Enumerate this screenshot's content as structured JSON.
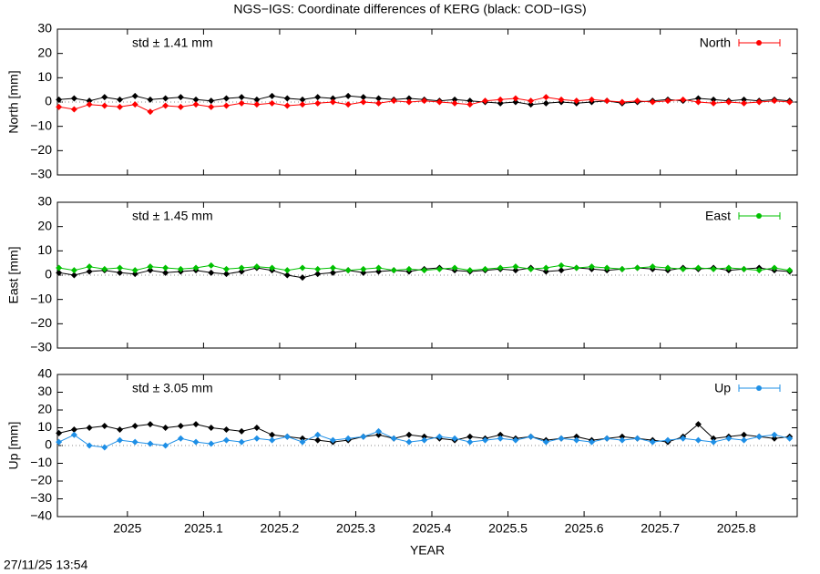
{
  "title": "NGS−IGS: Coordinate differences of KERG (black: COD−IGS)",
  "timestamp": "27/11/25 13:54",
  "chart_data": [
    {
      "type": "line",
      "ylabel": "North [mm]",
      "annotation": "std ± 1.41 mm",
      "xlim": [
        2024.908,
        2025.88
      ],
      "ylim": [
        -30,
        30
      ],
      "yticks": [
        {
          "value": -30,
          "label": "−30"
        },
        {
          "value": -20,
          "label": "−20"
        },
        {
          "value": -10,
          "label": "−10"
        },
        0,
        10,
        20,
        30
      ],
      "x": [
        2024.91,
        2024.93,
        2024.95,
        2024.97,
        2024.99,
        2025.01,
        2025.03,
        2025.05,
        2025.07,
        2025.09,
        2025.11,
        2025.13,
        2025.15,
        2025.17,
        2025.19,
        2025.21,
        2025.23,
        2025.25,
        2025.27,
        2025.29,
        2025.31,
        2025.33,
        2025.35,
        2025.37,
        2025.39,
        2025.41,
        2025.43,
        2025.45,
        2025.47,
        2025.49,
        2025.51,
        2025.53,
        2025.55,
        2025.57,
        2025.59,
        2025.61,
        2025.63,
        2025.65,
        2025.67,
        2025.69,
        2025.71,
        2025.73,
        2025.75,
        2025.77,
        2025.79,
        2025.81,
        2025.83,
        2025.85,
        2025.87
      ],
      "series": [
        {
          "color": "#000000",
          "values": [
            1,
            1.5,
            0.5,
            2,
            1,
            2.5,
            1,
            1.5,
            2,
            1,
            0.5,
            1.5,
            2,
            1,
            2.5,
            1.5,
            1,
            2,
            1.5,
            2.5,
            2,
            1.5,
            1,
            1.5,
            1,
            0.5,
            1,
            0.5,
            0,
            -0.5,
            0,
            -1,
            -0.5,
            0,
            -0.5,
            0,
            0.5,
            -0.5,
            0,
            0.5,
            1,
            0.5,
            1.5,
            1,
            0.5,
            1,
            0.5,
            1,
            0.5
          ]
        },
        {
          "name": "North",
          "color": "#ff0000",
          "values": [
            -2,
            -3,
            -1,
            -1.5,
            -2,
            -1,
            -4,
            -1.5,
            -2,
            -1,
            -2,
            -1.5,
            -0.5,
            -1,
            -0.5,
            -1.5,
            -1,
            -0.5,
            0,
            -1,
            0,
            -0.5,
            0.5,
            0,
            0.5,
            0,
            -0.5,
            -1,
            0.5,
            1,
            1.5,
            0.5,
            2,
            1,
            0.5,
            1,
            0.5,
            0,
            0.5,
            0,
            0.5,
            1,
            0,
            -0.5,
            0,
            -0.5,
            0,
            0.5,
            0
          ]
        }
      ]
    },
    {
      "type": "line",
      "ylabel": "East [mm]",
      "annotation": "std ± 1.45 mm",
      "xlim": [
        2024.908,
        2025.88
      ],
      "ylim": [
        -30,
        30
      ],
      "yticks": [
        {
          "value": -30,
          "label": "−30"
        },
        {
          "value": -20,
          "label": "−20"
        },
        {
          "value": -10,
          "label": "−10"
        },
        0,
        10,
        20,
        30
      ],
      "x": [
        2024.91,
        2024.93,
        2024.95,
        2024.97,
        2024.99,
        2025.01,
        2025.03,
        2025.05,
        2025.07,
        2025.09,
        2025.11,
        2025.13,
        2025.15,
        2025.17,
        2025.19,
        2025.21,
        2025.23,
        2025.25,
        2025.27,
        2025.29,
        2025.31,
        2025.33,
        2025.35,
        2025.37,
        2025.39,
        2025.41,
        2025.43,
        2025.45,
        2025.47,
        2025.49,
        2025.51,
        2025.53,
        2025.55,
        2025.57,
        2025.59,
        2025.61,
        2025.63,
        2025.65,
        2025.67,
        2025.69,
        2025.71,
        2025.73,
        2025.75,
        2025.77,
        2025.79,
        2025.81,
        2025.83,
        2025.85,
        2025.87
      ],
      "series": [
        {
          "color": "#000000",
          "values": [
            1,
            0,
            1.5,
            2,
            1,
            0.5,
            2,
            1,
            1.5,
            2,
            1,
            0.5,
            1.5,
            3,
            2,
            0,
            -1,
            0.5,
            1,
            2,
            1,
            1.5,
            2,
            1.5,
            2.5,
            3,
            2,
            1.5,
            2,
            2.5,
            2,
            3,
            1.5,
            2,
            3,
            2.5,
            2,
            2.5,
            3,
            2.5,
            2,
            3,
            2.5,
            3,
            2,
            2.5,
            3,
            2,
            1.5
          ]
        },
        {
          "name": "East",
          "color": "#00c000",
          "values": [
            3,
            2,
            3.5,
            2.5,
            3,
            2,
            3.5,
            3,
            2.5,
            3,
            4,
            2.5,
            3,
            3.5,
            3,
            2,
            3,
            2.5,
            3,
            2,
            2.5,
            3,
            2,
            2.5,
            2,
            2.5,
            3,
            2,
            2.5,
            3,
            3.5,
            2.5,
            3,
            4,
            3,
            3.5,
            3,
            2.5,
            3,
            3.5,
            3,
            2.5,
            3,
            2.5,
            3,
            2.5,
            2,
            3,
            2
          ]
        }
      ]
    },
    {
      "type": "line",
      "ylabel": "Up [mm]",
      "xlabel": "YEAR",
      "annotation": "std ± 3.05 mm",
      "xlim": [
        2024.908,
        2025.88
      ],
      "ylim": [
        -40,
        40
      ],
      "yticks": [
        {
          "value": -40,
          "label": "−40"
        },
        {
          "value": -30,
          "label": "−30"
        },
        {
          "value": -20,
          "label": "−20"
        },
        {
          "value": -10,
          "label": "−10"
        },
        0,
        10,
        20,
        30,
        40
      ],
      "xticks": [
        2025,
        2025.1,
        2025.2,
        2025.3,
        2025.4,
        2025.5,
        2025.6,
        2025.7,
        2025.8
      ],
      "x": [
        2024.91,
        2024.93,
        2024.95,
        2024.97,
        2024.99,
        2025.01,
        2025.03,
        2025.05,
        2025.07,
        2025.09,
        2025.11,
        2025.13,
        2025.15,
        2025.17,
        2025.19,
        2025.21,
        2025.23,
        2025.25,
        2025.27,
        2025.29,
        2025.31,
        2025.33,
        2025.35,
        2025.37,
        2025.39,
        2025.41,
        2025.43,
        2025.45,
        2025.47,
        2025.49,
        2025.51,
        2025.53,
        2025.55,
        2025.57,
        2025.59,
        2025.61,
        2025.63,
        2025.65,
        2025.67,
        2025.69,
        2025.71,
        2025.73,
        2025.75,
        2025.77,
        2025.79,
        2025.81,
        2025.83,
        2025.85,
        2025.87
      ],
      "series": [
        {
          "color": "#000000",
          "values": [
            7,
            9,
            10,
            11,
            9,
            11,
            12,
            10,
            11,
            12,
            10,
            9,
            8,
            10,
            6,
            5,
            4,
            3,
            2,
            3,
            5,
            6,
            4,
            6,
            5,
            4,
            3,
            5,
            4,
            6,
            4,
            5,
            3,
            4,
            5,
            3,
            4,
            5,
            4,
            3,
            2,
            5,
            12,
            4,
            5,
            6,
            5,
            4,
            5
          ]
        },
        {
          "name": "Up",
          "color": "#1e8fe6",
          "values": [
            2,
            6,
            0,
            -1,
            3,
            2,
            1,
            0,
            4,
            2,
            1,
            3,
            2,
            4,
            3,
            5,
            2,
            6,
            3,
            4,
            5,
            8,
            4,
            2,
            3,
            5,
            4,
            2,
            3,
            4,
            3,
            5,
            2,
            4,
            3,
            2,
            4,
            3,
            4,
            2,
            3,
            4,
            3,
            2,
            4,
            3,
            5,
            6,
            4
          ]
        }
      ]
    }
  ]
}
